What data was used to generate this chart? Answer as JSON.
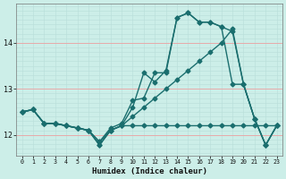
{
  "xlabel": "Humidex (Indice chaleur)",
  "bg_color": "#cceee8",
  "grid_color_major": "#e8aaaa",
  "grid_color_minor": "#b8ddd8",
  "line_color": "#1a6e6e",
  "xlim": [
    -0.5,
    23.5
  ],
  "ylim": [
    11.55,
    14.85
  ],
  "yticks": [
    12,
    13,
    14
  ],
  "xticks": [
    0,
    1,
    2,
    3,
    4,
    5,
    6,
    7,
    8,
    9,
    10,
    11,
    12,
    13,
    14,
    15,
    16,
    17,
    18,
    19,
    20,
    21,
    22,
    23
  ],
  "lines": [
    {
      "x": [
        0,
        1,
        2,
        3,
        4,
        5,
        6,
        7,
        8,
        9,
        10,
        11,
        12,
        13,
        14,
        15,
        16,
        17,
        18,
        19,
        20,
        21,
        22,
        23
      ],
      "y": [
        12.5,
        12.55,
        12.25,
        12.25,
        12.2,
        12.15,
        12.1,
        11.78,
        12.1,
        12.2,
        12.2,
        12.2,
        12.2,
        12.2,
        12.2,
        12.2,
        12.2,
        12.2,
        12.2,
        12.2,
        12.2,
        12.2,
        12.2,
        12.2
      ]
    },
    {
      "x": [
        0,
        1,
        2,
        3,
        4,
        5,
        6,
        7,
        8,
        9,
        10,
        11,
        12,
        13,
        14,
        15,
        16,
        17,
        18,
        19,
        20,
        21,
        22,
        23
      ],
      "y": [
        12.5,
        12.55,
        12.25,
        12.25,
        12.2,
        12.15,
        12.1,
        11.78,
        12.1,
        12.2,
        12.6,
        13.35,
        13.15,
        13.4,
        14.55,
        14.65,
        14.45,
        14.45,
        14.35,
        14.25,
        13.1,
        12.35,
        11.78,
        12.2
      ]
    },
    {
      "x": [
        0,
        1,
        2,
        3,
        4,
        5,
        6,
        7,
        8,
        9,
        10,
        11,
        12,
        13,
        14,
        15,
        16,
        17,
        18,
        19,
        20,
        21,
        22,
        23
      ],
      "y": [
        12.5,
        12.55,
        12.25,
        12.25,
        12.2,
        12.15,
        12.1,
        11.85,
        12.1,
        12.2,
        12.4,
        12.6,
        12.8,
        13.0,
        13.2,
        13.4,
        13.6,
        13.8,
        14.0,
        14.3,
        13.1,
        12.35,
        11.78,
        12.2
      ]
    },
    {
      "x": [
        0,
        1,
        2,
        3,
        4,
        5,
        6,
        7,
        8,
        9,
        10,
        11,
        12,
        13,
        14,
        15,
        16,
        17,
        18,
        19,
        20,
        21,
        22,
        23
      ],
      "y": [
        12.5,
        12.55,
        12.25,
        12.25,
        12.2,
        12.15,
        12.1,
        11.85,
        12.15,
        12.25,
        12.75,
        12.8,
        13.35,
        13.35,
        14.55,
        14.65,
        14.45,
        14.45,
        14.35,
        13.1,
        13.1,
        12.35,
        11.78,
        12.2
      ]
    }
  ],
  "marker": "D",
  "markersize": 2.5,
  "linewidth": 1.0
}
